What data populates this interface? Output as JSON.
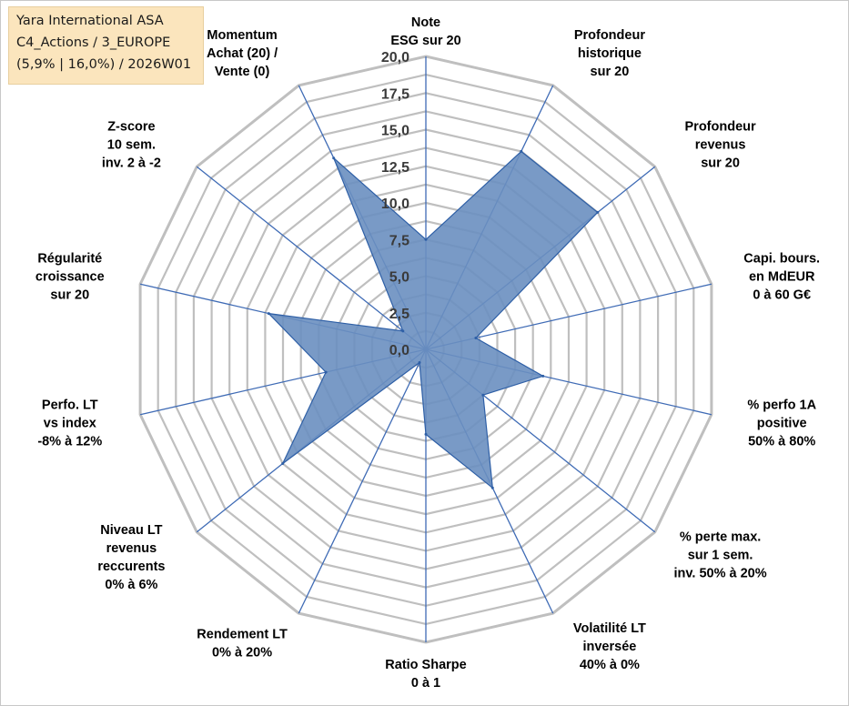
{
  "info_box": {
    "line1": "Yara International ASA",
    "line2": "C4_Actions / 3_EUROPE",
    "line3": "(5,9% | 16,0%) / 2026W01"
  },
  "colors": {
    "series_fill": "#6a8fc0",
    "series_stroke": "#2e5fa6",
    "spoke": "#3f6bb5",
    "grid": "#bfbfbf",
    "info_box_bg": "#fbe5bd"
  },
  "chart_data": {
    "type": "radar",
    "title": "",
    "r_range": [
      0,
      20
    ],
    "r_ticks": [
      "0,0",
      "2,5",
      "5,0",
      "7,5",
      "10,0",
      "12,5",
      "15,0",
      "17,5",
      "20,0"
    ],
    "grid": true,
    "categories": [
      [
        "Note",
        "ESG sur 20"
      ],
      [
        "Profondeur",
        "historique",
        "sur 20"
      ],
      [
        "Profondeur",
        "revenus",
        "sur 20"
      ],
      [
        "Capi. bours.",
        "en MdEUR",
        "0 à 60 G€"
      ],
      [
        "% perfo 1A",
        "positive",
        "50% à 80%"
      ],
      [
        "% perte max.",
        "sur 1 sem.",
        "inv. 50% à 20%"
      ],
      [
        "Volatilité LT",
        "inversée",
        "40% à 0%"
      ],
      [
        "Ratio Sharpe",
        "0 à 1"
      ],
      [
        "Rendement LT",
        "0% à 20%"
      ],
      [
        "Niveau LT",
        "revenus",
        "reccurents",
        "0% à 6%"
      ],
      [
        "Perfo. LT",
        "vs index",
        "-8% à 12%"
      ],
      [
        "Régularité",
        "croissance",
        "sur 20"
      ],
      [
        "Z-score",
        "10 sem.",
        "inv. 2 à -2"
      ],
      [
        "Momentum",
        "Achat (20) /",
        "Vente (0)"
      ]
    ],
    "series": [
      {
        "values": [
          7.5,
          15.0,
          15.0,
          3.5,
          8.2,
          5.0,
          10.5,
          5.8,
          1.0,
          12.5,
          7.0,
          11.0,
          2.0,
          14.5
        ]
      }
    ]
  }
}
